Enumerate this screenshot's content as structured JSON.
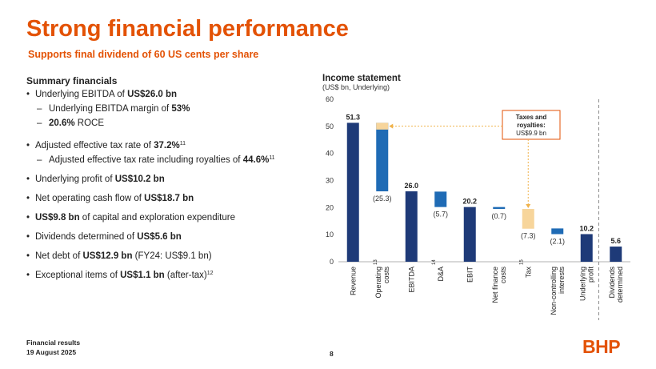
{
  "header": {
    "title": "Strong financial performance",
    "subtitle": "Supports final dividend of 60 US cents per share"
  },
  "summary": {
    "heading": "Summary financials",
    "ebitda_pre": "Underlying EBITDA of ",
    "ebitda_val": "US$26.0 bn",
    "margin_pre": "Underlying EBITDA margin of ",
    "margin_val": "53%",
    "roce_val": "20.6%",
    "roce_post": " ROCE",
    "tax_pre": "Adjusted effective tax rate of ",
    "tax_val": "37.2%",
    "tax_note": "11",
    "taxroy_pre": "Adjusted effective tax rate including royalties of ",
    "taxroy_val": "44.6%",
    "taxroy_note": "11",
    "profit_pre": "Underlying profit of ",
    "profit_val": "US$10.2 bn",
    "cash_pre": "Net operating cash flow of ",
    "cash_val": "US$18.7 bn",
    "capex_val": "US$9.8 bn",
    "capex_post": " of capital and exploration expenditure",
    "div_pre": "Dividends determined of ",
    "div_val": "US$5.6 bn",
    "debt_pre": "Net debt of ",
    "debt_val": "US$12.9 bn",
    "debt_post": " (FY24: US$9.1 bn)",
    "exc_pre": "Exceptional items of ",
    "exc_val": "US$1.1 bn",
    "exc_post": " (after-tax)",
    "exc_note": "12"
  },
  "chart_data": {
    "type": "bar",
    "title": "Income statement",
    "subtitle": "(US$ bn, Underlying)",
    "ylim": [
      0,
      60
    ],
    "yticks": [
      0,
      10,
      20,
      30,
      40,
      50,
      60
    ],
    "bars": [
      {
        "label": "Revenue",
        "note": "",
        "base": 0,
        "value": 51.3,
        "kind": "total",
        "value_label": "51.3"
      },
      {
        "label": "Operating costs",
        "note": "13",
        "base": 26.0,
        "value": 25.3,
        "kind": "delta",
        "value_label": "(25.3)"
      },
      {
        "label": "EBITDA",
        "note": "",
        "base": 0,
        "value": 26.0,
        "kind": "total",
        "value_label": "26.0"
      },
      {
        "label": "D&A",
        "note": "14",
        "base": 20.2,
        "value": 5.7,
        "kind": "delta",
        "value_label": "(5.7)"
      },
      {
        "label": "EBIT",
        "note": "",
        "base": 0,
        "value": 20.2,
        "kind": "total",
        "value_label": "20.2"
      },
      {
        "label": "Net finance costs",
        "note": "",
        "base": 19.5,
        "value": 0.7,
        "kind": "delta",
        "value_label": "(0.7)"
      },
      {
        "label": "Tax",
        "note": "15",
        "base": 12.2,
        "value": 7.3,
        "kind": "tax",
        "value_label": "(7.3)"
      },
      {
        "label": "Non-controlling interests",
        "note": "",
        "base": 10.2,
        "value": 2.1,
        "kind": "delta",
        "value_label": "(2.1)"
      },
      {
        "label": "Underlying profit",
        "note": "",
        "base": 0,
        "value": 10.2,
        "kind": "total",
        "value_label": "10.2"
      },
      {
        "label": "Dividends determined",
        "note": "",
        "base": 0,
        "value": 5.6,
        "kind": "total",
        "value_label": "5.6"
      }
    ],
    "royalty_segment": {
      "base": 48.8,
      "value": 2.5
    },
    "callout": {
      "lines": [
        "Taxes and",
        "royalties:",
        "US$9.9 bn"
      ]
    },
    "colors": {
      "total": "#1e3a78",
      "delta": "#1f6bb5",
      "tax": "#f7d59b",
      "callout_border": "#e35205",
      "divider": "#8c8c8c"
    }
  },
  "footer": {
    "line1": "Financial results",
    "line2": "19 August 2025",
    "page": "8",
    "logo": "BHP"
  }
}
